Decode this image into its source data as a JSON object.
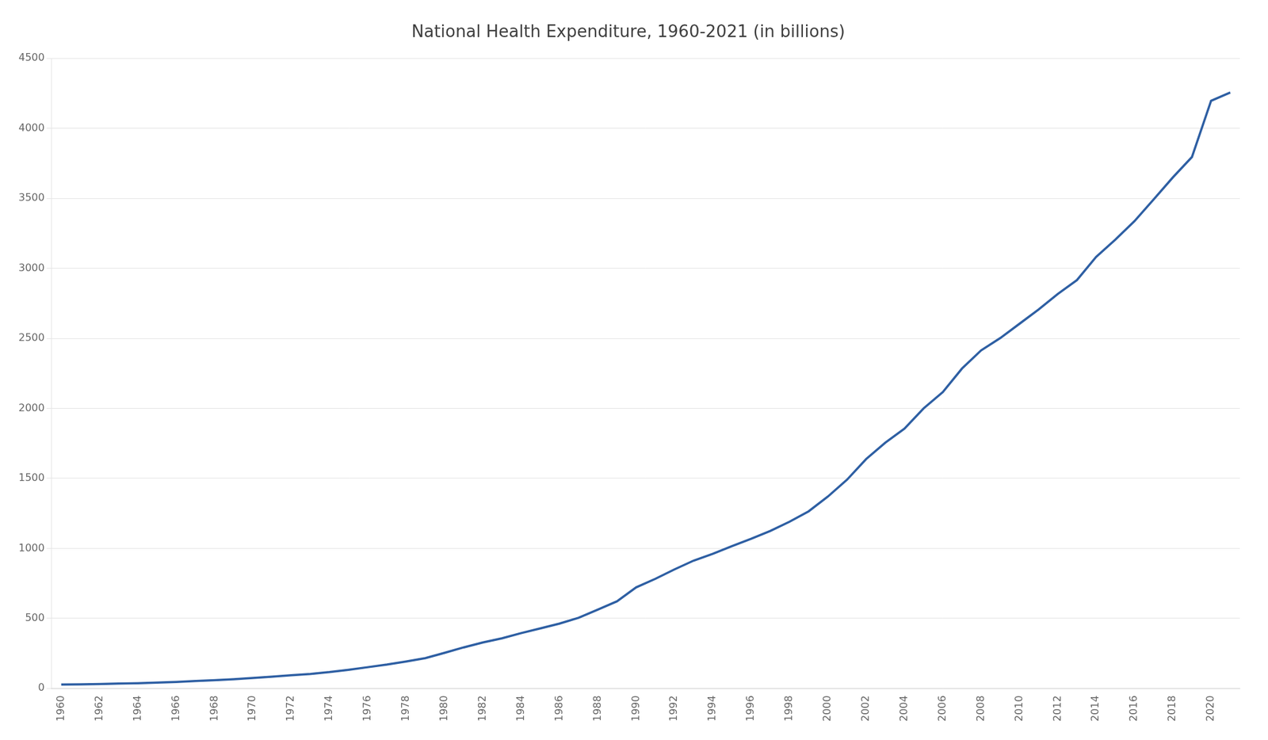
{
  "chart_data": {
    "type": "line",
    "title": "National Health Expenditure, 1960-2021 (in billions)",
    "x": [
      1960,
      1961,
      1962,
      1963,
      1964,
      1965,
      1966,
      1967,
      1968,
      1969,
      1970,
      1971,
      1972,
      1973,
      1974,
      1975,
      1976,
      1977,
      1978,
      1979,
      1980,
      1981,
      1982,
      1983,
      1984,
      1985,
      1986,
      1987,
      1988,
      1989,
      1990,
      1991,
      1992,
      1993,
      1994,
      1995,
      1996,
      1997,
      1998,
      1999,
      2000,
      2001,
      2002,
      2003,
      2004,
      2005,
      2006,
      2007,
      2008,
      2009,
      2010,
      2011,
      2012,
      2013,
      2014,
      2015,
      2016,
      2017,
      2018,
      2019,
      2020,
      2021
    ],
    "values": [
      27.2,
      29.1,
      31.4,
      34.0,
      37.1,
      41.1,
      45.7,
      52.4,
      58.7,
      65.6,
      74.9,
      83.7,
      94.0,
      103.2,
      116.2,
      132.9,
      151.4,
      170.2,
      192.4,
      215.9,
      253.9,
      292.8,
      328.0,
      357.5,
      394.5,
      428.7,
      462.8,
      504.7,
      562.9,
      621.6,
      721.4,
      782.5,
      849.8,
      912.6,
      961.5,
      1016.5,
      1068.3,
      1124.6,
      1190.1,
      1264.5,
      1369.7,
      1490.0,
      1638.0,
      1755.0,
      1855.0,
      2000.0,
      2116.0,
      2284.0,
      2414.0,
      2502.0,
      2604.0,
      2706.0,
      2817.0,
      2916.0,
      3082.0,
      3205.0,
      3337.0,
      3492.0,
      3649.0,
      3795.0,
      4197.0,
      4256.0
    ],
    "color": "#2E5FA3",
    "xlim": [
      1959.5,
      2021.5
    ],
    "xticks": [
      1960,
      1962,
      1964,
      1966,
      1968,
      1970,
      1972,
      1974,
      1976,
      1978,
      1980,
      1982,
      1984,
      1986,
      1988,
      1990,
      1992,
      1994,
      1996,
      1998,
      2000,
      2002,
      2004,
      2006,
      2008,
      2010,
      2012,
      2014,
      2016,
      2018,
      2020
    ],
    "ylim": [
      0,
      4500
    ],
    "yticks": [
      0,
      500,
      1000,
      1500,
      2000,
      2500,
      3000,
      3500,
      4000,
      4500
    ],
    "grid": true
  }
}
